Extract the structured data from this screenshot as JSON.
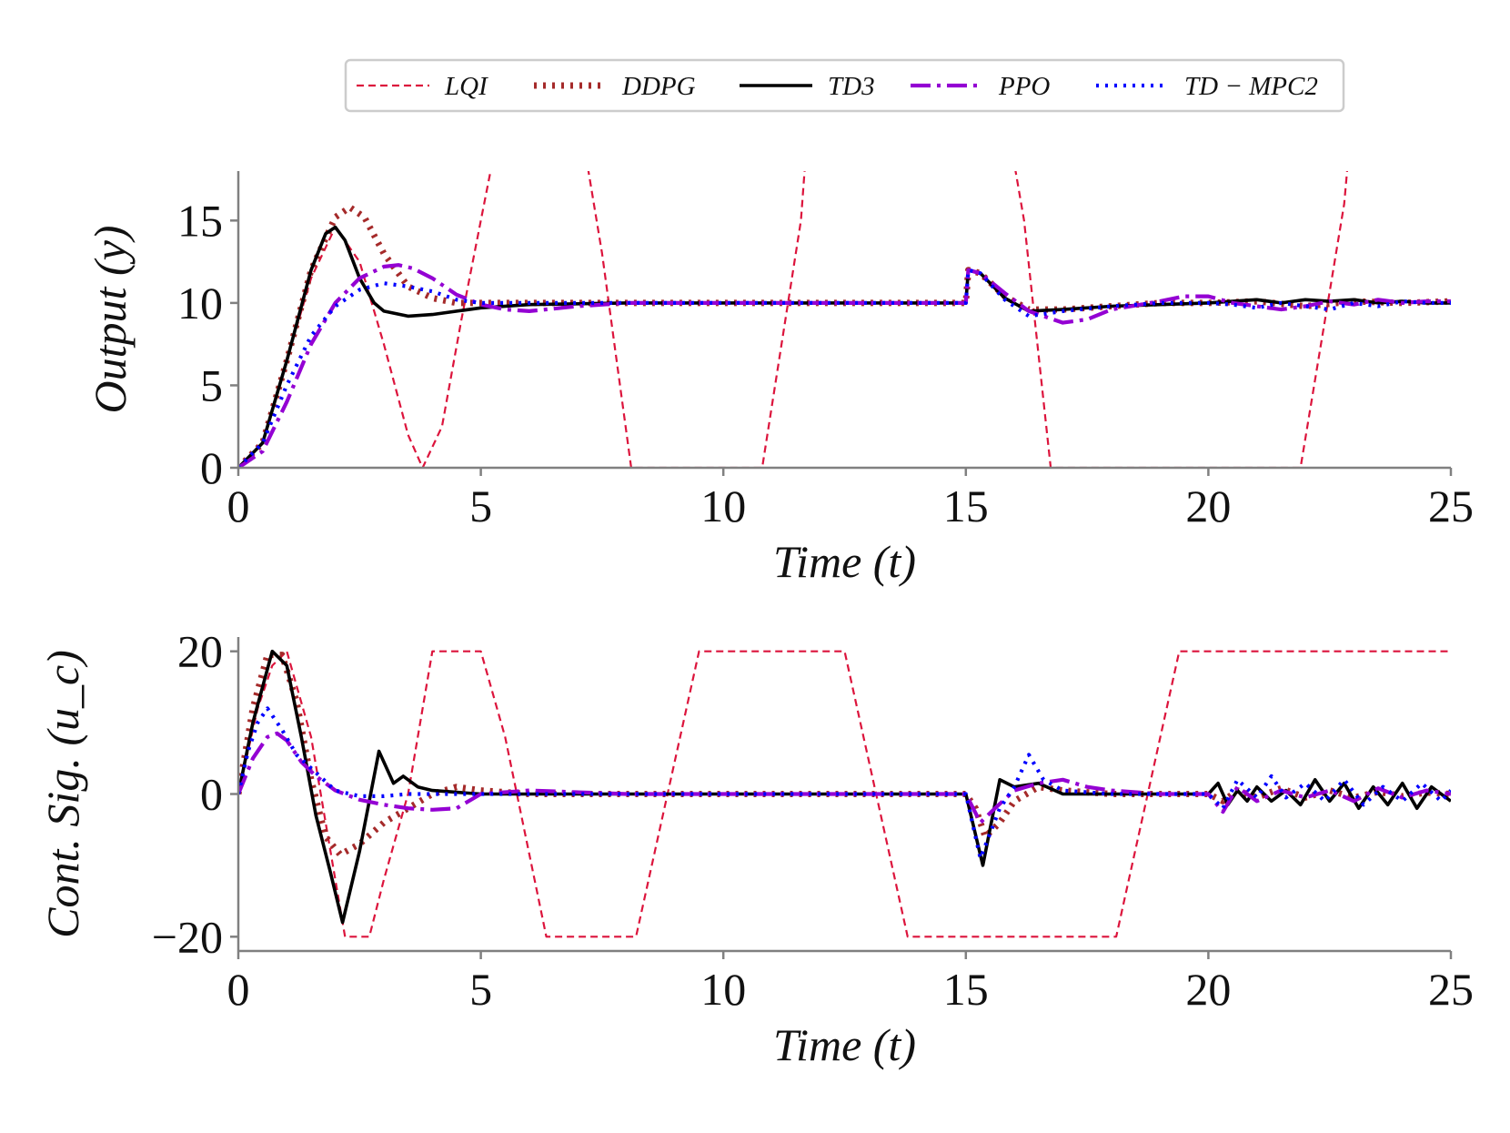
{
  "legend": {
    "entries": [
      {
        "name": "LQI",
        "color": "#dc143c",
        "style": "dashed-thin"
      },
      {
        "name": "DDPG",
        "color": "#a52a2a",
        "style": "dotted-thick"
      },
      {
        "name": "TD3",
        "color": "#000000",
        "style": "solid"
      },
      {
        "name": "PPO",
        "color": "#9400d3",
        "style": "dashdot"
      },
      {
        "name": "TD − MPC2",
        "color": "#0000ff",
        "style": "dotted"
      }
    ]
  },
  "chart_data": [
    {
      "type": "line",
      "xlabel": "Time (t)",
      "ylabel": "Output (y)",
      "xlim": [
        0,
        25
      ],
      "ylim": [
        0,
        18
      ],
      "xticks": [
        "0",
        "5",
        "10",
        "15",
        "20",
        "25"
      ],
      "yticks": [
        "0",
        "5",
        "10",
        "15"
      ],
      "xtick_values": [
        0,
        5,
        10,
        15,
        20,
        25
      ],
      "ytick_values": [
        0,
        5,
        10,
        15
      ],
      "series": [
        {
          "name": "LQI",
          "x": [
            0,
            0.5,
            1.0,
            1.5,
            2.0,
            2.5,
            3.0,
            3.5,
            3.8,
            4.2,
            4.6,
            5.0,
            5.2,
            5.35,
            7.05,
            7.5,
            8.1,
            10.8,
            11.6,
            11.75,
            15.85,
            16.2,
            16.75,
            21.9,
            22.8,
            22.95
          ],
          "y": [
            0,
            1.5,
            6.5,
            11.5,
            14.6,
            12.5,
            7.5,
            2.0,
            0.0,
            2.5,
            9.0,
            15.0,
            18.0,
            21.0,
            21.0,
            13.0,
            0.0,
            0.0,
            15.0,
            21.0,
            21.0,
            15.0,
            0.0,
            0.0,
            16.0,
            21.0
          ]
        },
        {
          "name": "DDPG",
          "x": [
            0,
            0.5,
            1.0,
            1.5,
            2.0,
            2.3,
            2.6,
            3.0,
            3.5,
            4.0,
            4.5,
            5.0,
            6.0,
            8.0,
            10.0,
            15.0,
            15.05,
            15.3,
            15.8,
            16.3,
            17.0,
            18.0,
            19.0,
            20.0,
            21.0,
            22.0,
            23.0,
            24.0,
            25.0
          ],
          "y": [
            0,
            1.5,
            6.5,
            12.0,
            15.2,
            15.8,
            15.2,
            13.0,
            11.0,
            10.3,
            10.0,
            10.0,
            10.0,
            10.0,
            10.0,
            10.0,
            12.0,
            11.8,
            10.4,
            9.6,
            9.6,
            9.8,
            10.0,
            10.0,
            10.1,
            9.8,
            10.1,
            10.0,
            10.1
          ]
        },
        {
          "name": "TD3",
          "x": [
            0,
            0.5,
            1.0,
            1.5,
            1.8,
            2.0,
            2.2,
            2.5,
            2.8,
            3.0,
            3.5,
            4.0,
            5.0,
            6.0,
            8.0,
            10.0,
            15.0,
            15.05,
            15.3,
            15.8,
            16.3,
            17.0,
            18.0,
            19.0,
            20.0,
            20.5,
            21.0,
            21.5,
            22.0,
            22.5,
            23.0,
            23.5,
            24.0,
            24.5,
            25.0
          ],
          "y": [
            0,
            1.5,
            6.5,
            12.0,
            14.2,
            14.6,
            13.8,
            11.5,
            10.0,
            9.5,
            9.2,
            9.3,
            9.7,
            9.9,
            10.0,
            10.0,
            10.0,
            12.0,
            11.8,
            10.3,
            9.5,
            9.6,
            9.8,
            9.9,
            10.0,
            10.1,
            10.2,
            10.0,
            10.2,
            10.1,
            10.2,
            10.0,
            10.1,
            10.0,
            10.0
          ]
        },
        {
          "name": "PPO",
          "x": [
            0,
            0.5,
            1.0,
            1.5,
            2.0,
            2.5,
            3.0,
            3.3,
            3.6,
            4.0,
            4.5,
            5.0,
            5.5,
            6.0,
            7.0,
            8.0,
            10.0,
            15.0,
            15.05,
            15.3,
            15.8,
            16.3,
            17.0,
            17.5,
            18.0,
            19.0,
            19.5,
            20.0,
            20.5,
            21.0,
            21.5,
            22.0,
            22.5,
            23.0,
            23.5,
            24.0,
            24.5,
            25.0
          ],
          "y": [
            0,
            1.0,
            4.0,
            7.5,
            10.0,
            11.5,
            12.2,
            12.3,
            12.1,
            11.5,
            10.5,
            9.9,
            9.6,
            9.5,
            9.8,
            10.0,
            10.0,
            10.0,
            12.0,
            11.8,
            10.6,
            9.5,
            8.8,
            9.0,
            9.6,
            10.1,
            10.4,
            10.4,
            10.0,
            9.8,
            9.6,
            9.8,
            10.1,
            9.9,
            10.2,
            10.0,
            10.1,
            10.1
          ]
        },
        {
          "name": "TD − MPC2",
          "x": [
            0,
            0.5,
            1.0,
            1.5,
            2.0,
            2.5,
            3.0,
            3.5,
            4.0,
            4.5,
            5.0,
            6.0,
            8.0,
            10.0,
            15.0,
            15.05,
            15.3,
            15.8,
            16.3,
            17.0,
            18.0,
            19.0,
            20.0,
            20.5,
            21.0,
            21.5,
            22.0,
            22.5,
            23.0,
            23.5,
            24.0,
            24.5,
            25.0
          ],
          "y": [
            0,
            1.5,
            5.0,
            8.0,
            9.8,
            10.8,
            11.2,
            11.0,
            10.7,
            10.2,
            10.0,
            10.0,
            10.0,
            10.0,
            10.0,
            12.0,
            11.8,
            10.2,
            9.2,
            9.5,
            9.8,
            10.0,
            10.0,
            9.9,
            9.7,
            10.0,
            9.8,
            9.6,
            10.0,
            9.8,
            10.1,
            10.0,
            10.0
          ]
        }
      ]
    },
    {
      "type": "line",
      "xlabel": "Time (t)",
      "ylabel": "Cont. Sig. (u_c)",
      "xlim": [
        0,
        25
      ],
      "ylim": [
        -22,
        22
      ],
      "xticks": [
        "0",
        "5",
        "10",
        "15",
        "20",
        "25"
      ],
      "yticks": [
        "−20",
        "0",
        "20"
      ],
      "xtick_values": [
        0,
        5,
        10,
        15,
        20,
        25
      ],
      "ytick_values": [
        -20,
        0,
        20
      ],
      "series": [
        {
          "name": "LQI",
          "x": [
            0,
            0.4,
            0.7,
            1.0,
            1.5,
            2.0,
            2.2,
            2.7,
            3.0,
            3.5,
            4.0,
            5.0,
            5.5,
            6.35,
            8.2,
            9.5,
            12.5,
            13.8,
            18.1,
            19.4,
            25.0
          ],
          "y": [
            0,
            12.0,
            18.0,
            20.0,
            8.0,
            -12.0,
            -20.0,
            -20.0,
            -12.0,
            0.0,
            20.0,
            20.0,
            8.0,
            -20.0,
            -20.0,
            20.0,
            20.0,
            -20.0,
            -20.0,
            20.0,
            20.0
          ]
        },
        {
          "name": "DDPG",
          "x": [
            0,
            0.3,
            0.6,
            0.9,
            1.2,
            1.5,
            1.8,
            2.1,
            2.5,
            3.0,
            3.5,
            4.0,
            4.5,
            5.0,
            6.0,
            8.0,
            10.0,
            15.0,
            15.2,
            15.4,
            15.7,
            16.0,
            16.5,
            17.0,
            18.0,
            20.0,
            20.3,
            20.6,
            21.0,
            21.5,
            22.0,
            22.5,
            23.0,
            23.5,
            24.0,
            24.5,
            25.0
          ],
          "y": [
            0,
            12.0,
            19.5,
            19.5,
            13.0,
            2.0,
            -6.0,
            -8.5,
            -7.0,
            -4.0,
            -2.0,
            0.0,
            1.0,
            0.5,
            0.0,
            0.0,
            0.0,
            0.0,
            -2.0,
            -6.0,
            -4.0,
            -1.0,
            1.0,
            0.5,
            0.0,
            0.0,
            -1.0,
            0.5,
            -0.5,
            0.8,
            -0.5,
            0.5,
            -0.5,
            0.3,
            -0.3,
            0.2,
            0.0
          ]
        },
        {
          "name": "TD3",
          "x": [
            0,
            0.3,
            0.7,
            1.0,
            1.3,
            1.6,
            1.9,
            2.15,
            2.5,
            2.9,
            3.2,
            3.4,
            3.7,
            4.0,
            5.0,
            6.0,
            8.0,
            10.0,
            15.0,
            15.35,
            15.7,
            16.0,
            16.5,
            17.0,
            18.0,
            20.0,
            20.2,
            20.4,
            20.6,
            20.8,
            21.0,
            21.3,
            21.6,
            21.9,
            22.2,
            22.5,
            22.8,
            23.1,
            23.4,
            23.7,
            24.0,
            24.3,
            24.6,
            24.9,
            25.0
          ],
          "y": [
            0,
            10.0,
            20.0,
            18.0,
            8.0,
            -3.0,
            -11.0,
            -18.0,
            -8.0,
            6.0,
            1.5,
            2.5,
            1.0,
            0.5,
            0.0,
            0.0,
            0.0,
            0.0,
            0.0,
            -10.0,
            2.0,
            1.0,
            1.5,
            0.0,
            0.0,
            0.0,
            1.5,
            -1.5,
            0.5,
            -1.0,
            1.0,
            -1.0,
            0.5,
            -1.5,
            2.0,
            -1.0,
            1.5,
            -2.0,
            1.0,
            -1.5,
            1.5,
            -2.0,
            1.0,
            -0.5,
            -1.0
          ]
        },
        {
          "name": "PPO",
          "x": [
            0,
            0.3,
            0.6,
            0.8,
            1.0,
            1.3,
            1.6,
            2.0,
            2.5,
            3.0,
            3.5,
            4.0,
            4.5,
            5.0,
            6.0,
            8.0,
            10.0,
            15.0,
            15.3,
            15.6,
            16.0,
            16.5,
            17.0,
            17.5,
            18.0,
            19.0,
            20.0,
            20.3,
            20.6,
            21.0,
            21.5,
            22.0,
            22.5,
            23.0,
            23.5,
            24.0,
            24.5,
            25.0
          ],
          "y": [
            0,
            5.0,
            8.0,
            8.5,
            7.5,
            4.5,
            2.5,
            0.5,
            -0.8,
            -1.5,
            -2.0,
            -2.2,
            -2.0,
            0.0,
            0.5,
            0.0,
            0.0,
            0.0,
            -4.0,
            -2.0,
            0.5,
            1.5,
            2.0,
            1.0,
            0.5,
            0.0,
            0.0,
            -2.5,
            1.0,
            -1.0,
            0.5,
            -0.5,
            0.5,
            -1.0,
            0.8,
            -0.5,
            0.5,
            0.0
          ]
        },
        {
          "name": "TD − MPC2",
          "x": [
            0,
            0.2,
            0.4,
            0.6,
            0.9,
            1.2,
            1.6,
            2.0,
            2.5,
            3.0,
            3.5,
            4.0,
            4.5,
            5.0,
            6.0,
            8.0,
            10.0,
            15.0,
            15.3,
            15.7,
            16.0,
            16.3,
            16.6,
            17.0,
            18.0,
            20.0,
            20.3,
            20.6,
            21.0,
            21.3,
            21.6,
            22.0,
            22.4,
            22.8,
            23.2,
            23.6,
            24.0,
            24.4,
            24.8,
            25.0
          ],
          "y": [
            0,
            6.0,
            10.0,
            12.0,
            9.0,
            5.5,
            3.0,
            0.5,
            -0.3,
            -0.3,
            0.0,
            0.0,
            0.0,
            0.0,
            0.0,
            0.0,
            0.0,
            0.0,
            -9.0,
            -2.0,
            1.0,
            5.5,
            2.0,
            0.5,
            0.0,
            0.0,
            -2.0,
            2.0,
            -0.5,
            2.5,
            -0.5,
            1.5,
            -1.0,
            2.0,
            -1.5,
            1.0,
            -1.0,
            1.5,
            -1.0,
            0.5
          ]
        }
      ]
    }
  ]
}
